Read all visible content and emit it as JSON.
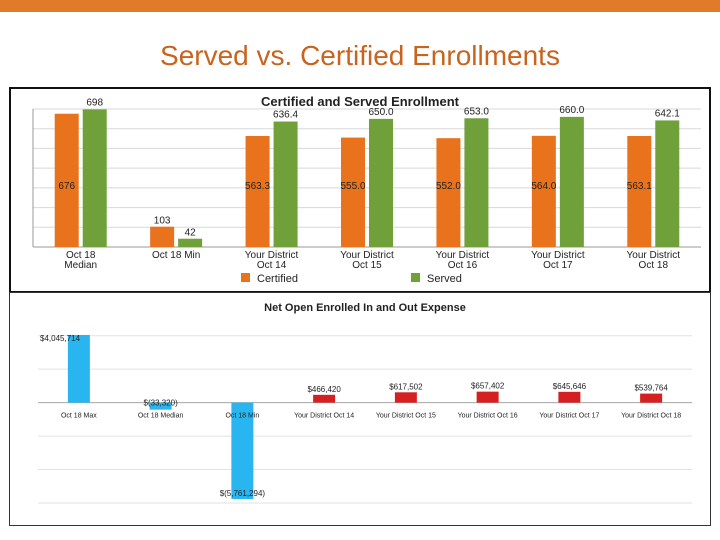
{
  "slide": {
    "title": "Served vs. Certified Enrollments",
    "accent_color": "#e07b2a",
    "title_color": "#c8641e"
  },
  "chart_data": [
    {
      "type": "bar",
      "title": "Certified and Served Enrollment",
      "categories": [
        [
          "Oct 18",
          "Median"
        ],
        [
          "Oct 18 Min"
        ],
        [
          "Your District",
          "Oct 14"
        ],
        [
          "Your District",
          "Oct 15"
        ],
        [
          "Your District",
          "Oct 16"
        ],
        [
          "Your District",
          "Oct 17"
        ],
        [
          "Your District",
          "Oct 18"
        ]
      ],
      "series": [
        {
          "name": "Certified",
          "color": "#e8731c",
          "values": [
            676,
            103,
            563,
            555,
            552,
            564,
            563
          ],
          "labels": [
            "676",
            "103",
            "563.3",
            "555.0",
            "552.0",
            "564.0",
            "563.1"
          ]
        },
        {
          "name": "Served",
          "color": "#6fa03a",
          "values": [
            698,
            42,
            636.4,
            650.0,
            653.0,
            660.0,
            642.1
          ],
          "labels": [
            "698",
            "42",
            "636.4",
            "650.0",
            "653.0",
            "660.0",
            "642.1"
          ]
        }
      ],
      "ylim": [
        0,
        700
      ],
      "legend": "bottom"
    },
    {
      "type": "bar",
      "title": "Net Open Enrolled In and Out Expense",
      "categories": [
        "Oct 18 Max",
        "Oct 18 Median",
        "Oct 18 Min",
        "Your District Oct 14",
        "Your District Oct 15",
        "Your District Oct 16",
        "Your District Oct 17",
        "Your District Oct 18"
      ],
      "values": [
        4045714,
        -33320,
        -5761294,
        466420,
        617502,
        657402,
        645646,
        539764
      ],
      "labels": [
        "$4,045,714",
        "$(33,320)",
        "$(5,761,294)",
        "$466,420",
        "$617,502",
        "$657,402",
        "$645,646",
        "$539,764"
      ],
      "colors": [
        "#29b6f0",
        "#29b6f0",
        "#29b6f0",
        "#d42020",
        "#d42020",
        "#d42020",
        "#d42020",
        "#d42020"
      ],
      "ylim": [
        -6000000,
        5000000
      ]
    }
  ]
}
